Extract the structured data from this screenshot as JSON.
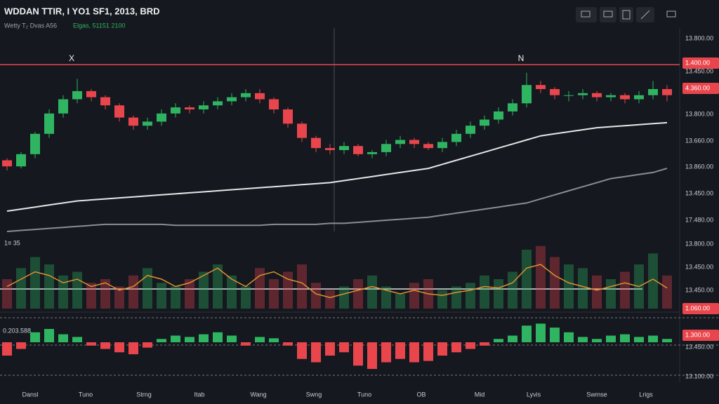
{
  "chart_data": {
    "type": "candlestick",
    "title": "WDDAN TTIR, I YO1 SF1, 2013, BRD",
    "subtitle": "Wetty T₂ Dvas A56",
    "subtitle2": "Elgas, 51151 2100",
    "up_color": "#2fb562",
    "down_color": "#e8464c",
    "ylim": [
      0,
      100
    ],
    "open": [
      35,
      32,
      38,
      48,
      58,
      65,
      69,
      66,
      62,
      56,
      52,
      54,
      58,
      61,
      60,
      62,
      64,
      66,
      68,
      65,
      60,
      53,
      46,
      41,
      40,
      42,
      38,
      39,
      43,
      45,
      43,
      41,
      44,
      48,
      52,
      55,
      59,
      63,
      72,
      70,
      67,
      67,
      68,
      66,
      67,
      65,
      67,
      70
    ],
    "high": [
      36,
      39,
      49,
      60,
      67,
      75,
      70,
      67,
      63,
      57,
      56,
      60,
      63,
      62,
      64,
      66,
      68,
      70,
      70,
      66,
      61,
      54,
      47,
      43,
      44,
      43,
      40,
      45,
      47,
      46,
      44,
      46,
      50,
      54,
      57,
      61,
      65,
      78,
      74,
      71,
      69,
      70,
      69,
      68,
      68,
      69,
      74,
      72
    ],
    "low": [
      30,
      31,
      36,
      46,
      56,
      63,
      64,
      60,
      54,
      50,
      50,
      52,
      56,
      58,
      58,
      60,
      62,
      64,
      63,
      58,
      51,
      44,
      39,
      38,
      38,
      37,
      36,
      37,
      41,
      41,
      40,
      39,
      42,
      46,
      50,
      53,
      57,
      61,
      68,
      65,
      64,
      65,
      64,
      64,
      63,
      63,
      65,
      64
    ],
    "close": [
      32,
      38,
      48,
      58,
      65,
      69,
      66,
      62,
      56,
      52,
      54,
      58,
      61,
      60,
      62,
      64,
      66,
      68,
      65,
      60,
      53,
      46,
      41,
      40,
      42,
      38,
      39,
      43,
      45,
      43,
      41,
      44,
      48,
      52,
      55,
      59,
      63,
      72,
      70,
      67,
      67,
      68,
      66,
      67,
      65,
      67,
      70,
      67
    ],
    "series": [
      {
        "color": "#e6e6e6",
        "values": [
          10,
          11,
          12,
          13,
          14,
          15,
          15.5,
          16,
          16.5,
          17,
          17.5,
          18,
          18.5,
          19,
          19.5,
          20,
          20.5,
          21,
          21.5,
          22,
          22.5,
          23,
          23.5,
          24,
          25,
          26,
          27,
          28,
          29,
          30,
          31,
          33,
          35,
          37,
          39,
          41,
          43,
          45,
          47,
          48,
          49,
          50,
          51,
          51.5,
          52,
          52.5,
          53,
          53.5
        ]
      },
      {
        "color": "#8a8d94",
        "values": [
          0,
          0.5,
          1,
          1.5,
          2,
          2.5,
          3,
          3.5,
          3.5,
          3.5,
          3.5,
          3.5,
          3,
          3,
          3,
          3,
          3,
          3,
          3,
          3.5,
          3.5,
          3.5,
          3.5,
          4,
          4,
          4.5,
          5,
          5.5,
          6,
          6.5,
          7,
          8,
          9,
          10,
          11,
          12,
          13,
          14,
          16,
          18,
          20,
          22,
          24,
          26,
          27,
          28,
          29,
          31
        ]
      }
    ],
    "hline": 82,
    "hline_color": "#e8464c",
    "annotations": [
      "X",
      "N"
    ],
    "axis_labels": [
      "13.800.00",
      "1.400.00",
      "13.450.00",
      "4.360.00",
      "13.800.00",
      "13.660.00",
      "13.860.00",
      "13.450.00",
      "17.480.00",
      "13.800.00",
      "13.450.00",
      "13.450.00",
      "1.060.00",
      "1.300.00",
      "13.450.00",
      "13.100.00"
    ],
    "panel_label": "1≡ 35",
    "lower_panel_label": "0.203.588",
    "volume": {
      "ylim": [
        0,
        100
      ],
      "values": [
        40,
        55,
        70,
        60,
        45,
        50,
        35,
        40,
        30,
        45,
        55,
        35,
        30,
        40,
        50,
        60,
        45,
        30,
        55,
        40,
        50,
        60,
        35,
        25,
        30,
        40,
        45,
        30,
        20,
        35,
        40,
        25,
        30,
        35,
        45,
        40,
        50,
        80,
        85,
        70,
        60,
        55,
        45,
        40,
        50,
        60,
        75,
        45
      ]
    },
    "oscillator": {
      "color": "#e0912f",
      "values": [
        30,
        40,
        50,
        45,
        35,
        40,
        30,
        35,
        25,
        30,
        45,
        40,
        30,
        35,
        45,
        55,
        40,
        30,
        45,
        50,
        40,
        35,
        20,
        15,
        20,
        25,
        30,
        25,
        20,
        25,
        20,
        18,
        22,
        25,
        30,
        28,
        35,
        55,
        60,
        45,
        35,
        30,
        25,
        30,
        35,
        30,
        40,
        28
      ]
    },
    "macd": {
      "ylim": [
        -60,
        40
      ],
      "values": [
        -20,
        -10,
        15,
        20,
        12,
        8,
        -5,
        -10,
        -15,
        -18,
        -8,
        5,
        10,
        8,
        12,
        15,
        10,
        -5,
        8,
        6,
        -5,
        -25,
        -30,
        -20,
        -15,
        -35,
        -40,
        -30,
        -25,
        -30,
        -28,
        -20,
        -15,
        -10,
        -5,
        5,
        10,
        25,
        28,
        22,
        15,
        8,
        5,
        10,
        12,
        8,
        10,
        5
      ]
    },
    "x_labels": [
      "Dansl",
      "Tuno",
      "Strng",
      "Itab",
      "Wang",
      "Swng",
      "Tuno",
      "OB",
      "Mid",
      "Lyvis",
      "Swmse",
      "Lrigs"
    ]
  }
}
